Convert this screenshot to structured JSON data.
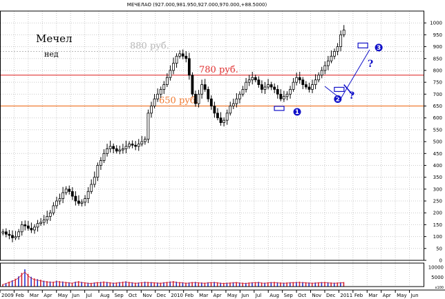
{
  "chart_data": {
    "type": "candlestick",
    "title": "МЕЧЕЛАО (927.000,981.950,927.000,970.000,+88.5000)",
    "company": "Мечел",
    "period": "нед",
    "price_axis": {
      "range": [
        0,
        1050
      ],
      "ticks": [
        1000,
        950,
        900,
        850,
        800,
        750,
        700,
        650,
        600,
        550,
        500,
        450,
        400,
        350,
        300,
        250,
        200,
        150,
        100,
        50,
        0
      ]
    },
    "volume_axis": {
      "ticks": [
        10000,
        5000
      ],
      "scale_label": "x100"
    },
    "x_axis": {
      "ticks": [
        "2009",
        "Feb",
        "Mar",
        "Apr",
        "May",
        "Jun",
        "Jul",
        "Aug",
        "Sep",
        "Oct",
        "Nov",
        "Dec",
        "2010",
        "Feb",
        "Mar",
        "Apr",
        "May",
        "Jun",
        "Jul",
        "Aug",
        "Sep",
        "Oct",
        "Nov",
        "Dec",
        "2011",
        "Feb",
        "Mar",
        "Apr",
        "May",
        "Jun"
      ]
    },
    "grid": true,
    "levels": [
      {
        "label": "880 руб.",
        "value": 880,
        "color": "#b8b8b8"
      },
      {
        "label": "780 руб.",
        "value": 780,
        "color": "#e03030"
      },
      {
        "label": "650 руб.",
        "value": 650,
        "color": "#f07a30"
      }
    ],
    "markers": [
      {
        "label": "1",
        "date_index": 87.5,
        "price": 640
      },
      {
        "label": "2",
        "date_index": 106.5,
        "price": 720
      },
      {
        "label": "3",
        "date_index": 114,
        "price": 905
      }
    ],
    "question_marks": [
      "?",
      "?"
    ],
    "candles_weekly_close": [
      120,
      110,
      105,
      95,
      100,
      120,
      150,
      145,
      135,
      128,
      140,
      155,
      160,
      170,
      185,
      200,
      230,
      250,
      260,
      285,
      300,
      290,
      270,
      250,
      240,
      245,
      260,
      290,
      320,
      350,
      400,
      420,
      450,
      470,
      480,
      470,
      460,
      465,
      470,
      480,
      490,
      485,
      480,
      490,
      500,
      510,
      620,
      650,
      680,
      700,
      720,
      740,
      770,
      800,
      830,
      860,
      870,
      860,
      850,
      780,
      700,
      660,
      700,
      740,
      720,
      680,
      650,
      620,
      600,
      580,
      590,
      620,
      650,
      660,
      680,
      700,
      720,
      750,
      760,
      770,
      760,
      740,
      720,
      730,
      740,
      730,
      720,
      700,
      680,
      690,
      700,
      720,
      750,
      770,
      760,
      740,
      730,
      720,
      740,
      760,
      780,
      800,
      820,
      840,
      860,
      880,
      900,
      950,
      970
    ],
    "volumes": [
      1200,
      1800,
      2500,
      3200,
      4000,
      5200,
      7000,
      8800,
      6500,
      5000,
      4200,
      3800,
      3500,
      3000,
      2800,
      2600,
      2500,
      3000,
      2800,
      2600,
      2400,
      2200,
      2000,
      2500,
      2800,
      2400,
      2200,
      2000,
      1900,
      2100,
      2300,
      2400,
      2600,
      2400,
      2200,
      2000,
      2100,
      2300,
      2500,
      2700,
      2400,
      2200,
      2000,
      2100,
      2300,
      2500,
      2400,
      2300,
      2200,
      2100,
      2000,
      2200,
      2400,
      2600,
      2800,
      2500,
      2300,
      2200,
      2000,
      2100,
      2300,
      2400,
      2200,
      2100,
      2000,
      2200,
      2300,
      2400,
      2200,
      2000,
      1900,
      2000,
      2100,
      2200,
      2300,
      2100,
      2000,
      1900,
      2100,
      2200,
      2300,
      2400,
      2100,
      2000,
      2200,
      2300,
      2400,
      2200,
      2100,
      2000,
      2100,
      2200,
      2300,
      2400,
      2500,
      2300,
      2200,
      2100,
      2000,
      2100,
      2200,
      2300,
      2400,
      2200,
      2100,
      2000,
      2100,
      2200,
      2300
    ]
  }
}
